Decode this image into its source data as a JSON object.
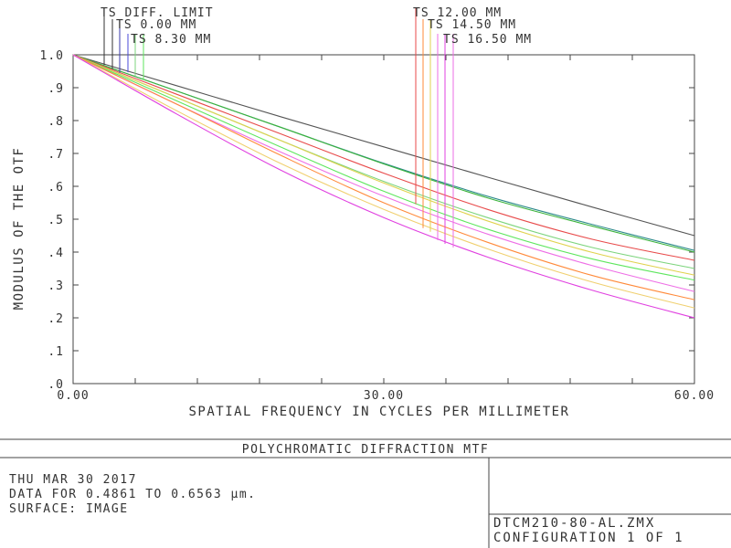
{
  "chart_data": {
    "type": "line",
    "title": "POLYCHROMATIC DIFFRACTION MTF",
    "xlabel": "SPATIAL FREQUENCY IN CYCLES PER MILLIMETER",
    "ylabel": "MODULUS OF THE OTF",
    "xlim": [
      0,
      60
    ],
    "ylim": [
      0,
      1
    ],
    "x_ticks": [
      "0.00",
      "30.00",
      "60.00"
    ],
    "y_ticks": [
      "1.0",
      ".9",
      ".8",
      ".7",
      ".6",
      ".5",
      ".4",
      ".3",
      ".2",
      ".1",
      ".0"
    ],
    "grid": true,
    "legend": [
      {
        "label": "TS DIFF. LIMIT",
        "x": 3.0,
        "y": 0.969
      },
      {
        "label": "TS 0.00 MM",
        "x": 4.3,
        "y": 0.957
      },
      {
        "label": "TS 8.30 MM",
        "x": 5.9,
        "y": 0.947
      },
      {
        "label": "TS 12.00 MM",
        "x": 33.3,
        "y": 0.546
      },
      {
        "label": "TS 14.50 MM",
        "x": 34.8,
        "y": 0.473
      },
      {
        "label": "TS 16.50 MM",
        "x": 36.5,
        "y": 0.436
      }
    ],
    "series": [
      {
        "color": "#555555",
        "x": [
          0,
          10,
          20,
          30,
          40,
          50,
          60
        ],
        "y": [
          1.0,
          0.906,
          0.812,
          0.72,
          0.628,
          0.538,
          0.45
        ]
      },
      {
        "color": "#2e8b8b",
        "x": [
          0,
          10,
          20,
          30,
          40,
          50,
          60
        ],
        "y": [
          1.0,
          0.89,
          0.78,
          0.67,
          0.57,
          0.485,
          0.405
        ]
      },
      {
        "color": "#3cb43c",
        "x": [
          0,
          10,
          20,
          30,
          40,
          50,
          60
        ],
        "y": [
          1.0,
          0.89,
          0.78,
          0.668,
          0.565,
          0.48,
          0.4
        ]
      },
      {
        "color": "#e84a4a",
        "x": [
          0,
          10,
          20,
          30,
          40,
          50,
          60
        ],
        "y": [
          1.0,
          0.88,
          0.76,
          0.64,
          0.53,
          0.44,
          0.375
        ]
      },
      {
        "color": "#7cd47c",
        "x": [
          0,
          10,
          20,
          30,
          40,
          50,
          60
        ],
        "y": [
          1.0,
          0.87,
          0.74,
          0.615,
          0.505,
          0.415,
          0.35
        ]
      },
      {
        "color": "#e0d24e",
        "x": [
          0,
          10,
          20,
          30,
          40,
          50,
          60
        ],
        "y": [
          1.0,
          0.87,
          0.74,
          0.61,
          0.495,
          0.4,
          0.33
        ]
      },
      {
        "color": "#5ee65e",
        "x": [
          0,
          10,
          20,
          30,
          40,
          50,
          60
        ],
        "y": [
          1.0,
          0.86,
          0.72,
          0.585,
          0.47,
          0.38,
          0.315
        ]
      },
      {
        "color": "#ee6ee6",
        "x": [
          0,
          10,
          20,
          30,
          40,
          50,
          60
        ],
        "y": [
          1.0,
          0.85,
          0.705,
          0.57,
          0.455,
          0.36,
          0.28
        ]
      },
      {
        "color": "#ff8a3a",
        "x": [
          0,
          10,
          20,
          30,
          40,
          50,
          60
        ],
        "y": [
          1.0,
          0.85,
          0.695,
          0.55,
          0.43,
          0.33,
          0.255
        ]
      },
      {
        "color": "#f0d070",
        "x": [
          0,
          10,
          20,
          30,
          40,
          50,
          60
        ],
        "y": [
          1.0,
          0.83,
          0.67,
          0.53,
          0.41,
          0.31,
          0.23
        ]
      },
      {
        "color": "#e040e0",
        "x": [
          0,
          10,
          20,
          30,
          40,
          50,
          60
        ],
        "y": [
          1.0,
          0.82,
          0.65,
          0.505,
          0.385,
          0.285,
          0.2
        ]
      }
    ]
  },
  "footer": {
    "date": "THU MAR 30 2017",
    "data_range": "DATA FOR 0.4861 TO 0.6563 µm.",
    "surface": "SURFACE: IMAGE",
    "file_name": "DTCM210-80-AL.ZMX",
    "configuration": "CONFIGURATION 1 OF 1"
  }
}
